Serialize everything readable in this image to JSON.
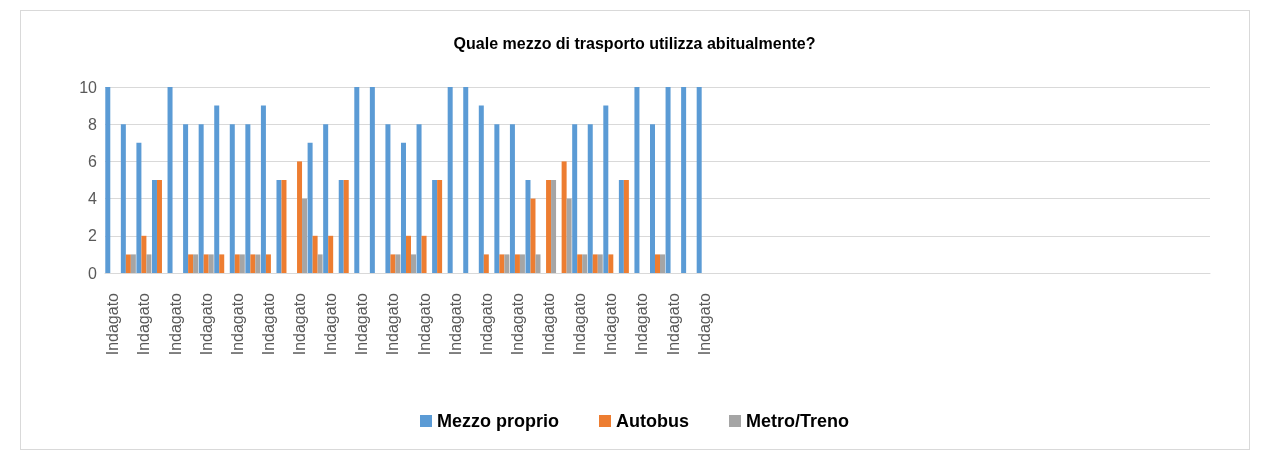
{
  "chart_data": {
    "type": "bar",
    "title": "Quale mezzo di trasporto utilizza abitualmente?",
    "categories": [
      "Indagato",
      null,
      "Indagato",
      null,
      "Indagato",
      null,
      "Indagato",
      null,
      "Indagato",
      null,
      "Indagato",
      null,
      "Indagato",
      null,
      "Indagato",
      null,
      "Indagato",
      null,
      "Indagato",
      null,
      "Indagato",
      null,
      "Indagato",
      null,
      "Indagato",
      null,
      "Indagato",
      null,
      "Indagato",
      null,
      "Indagato",
      null,
      "Indagato",
      null,
      "Indagato",
      null,
      "Indagato",
      null,
      "Indagato",
      null,
      null,
      null,
      null,
      null,
      null,
      null,
      null,
      null,
      null,
      null,
      null,
      null,
      null,
      null,
      null,
      null,
      null,
      null,
      null,
      null,
      null,
      null,
      null,
      null,
      null,
      null,
      null,
      null,
      null,
      null,
      null
    ],
    "series": [
      {
        "name": "Mezzo proprio",
        "color": "#5b9bd5",
        "values": [
          10,
          8,
          7,
          5,
          10,
          8,
          8,
          9,
          8,
          8,
          9,
          5,
          0,
          7,
          8,
          5,
          10,
          10,
          8,
          7,
          8,
          5,
          10,
          10,
          9,
          8,
          8,
          5,
          0,
          0,
          8,
          8,
          9,
          5,
          10,
          8,
          10,
          10,
          10,
          null,
          null,
          null,
          null,
          null,
          null,
          null,
          null,
          null,
          null,
          null,
          null,
          null,
          null,
          null,
          null,
          null,
          null,
          null,
          null,
          null,
          null,
          null,
          null,
          null,
          null,
          null,
          null,
          null,
          null,
          null,
          null
        ]
      },
      {
        "name": "Autobus",
        "color": "#ed7d31",
        "values": [
          0,
          1,
          2,
          5,
          0,
          1,
          1,
          1,
          1,
          1,
          1,
          5,
          6,
          2,
          2,
          5,
          0,
          0,
          1,
          2,
          2,
          5,
          0,
          0,
          1,
          1,
          1,
          4,
          5,
          6,
          1,
          1,
          1,
          5,
          0,
          1,
          0,
          0,
          0,
          null,
          null,
          null,
          null,
          null,
          null,
          null,
          null,
          null,
          null,
          null,
          null,
          null,
          null,
          null,
          null,
          null,
          null,
          null,
          null,
          null,
          null,
          null,
          null,
          null,
          null,
          null,
          null,
          null,
          null,
          null,
          null
        ]
      },
      {
        "name": "Metro/Treno",
        "color": "#a5a5a5",
        "values": [
          0,
          1,
          1,
          0,
          0,
          1,
          1,
          0,
          1,
          1,
          0,
          0,
          4,
          1,
          0,
          0,
          0,
          0,
          1,
          1,
          0,
          0,
          0,
          0,
          0,
          1,
          1,
          1,
          5,
          4,
          1,
          1,
          0,
          0,
          0,
          1,
          0,
          0,
          0,
          null,
          null,
          null,
          null,
          null,
          null,
          null,
          null,
          null,
          null,
          null,
          null,
          null,
          null,
          null,
          null,
          null,
          null,
          null,
          null,
          null,
          null,
          null,
          null,
          null,
          null,
          null,
          null,
          null,
          null,
          null,
          null
        ]
      }
    ],
    "ylim": [
      0,
      10
    ],
    "yticks": [
      0,
      2,
      4,
      6,
      8,
      10
    ],
    "grid": "y",
    "legend": "bottom"
  }
}
